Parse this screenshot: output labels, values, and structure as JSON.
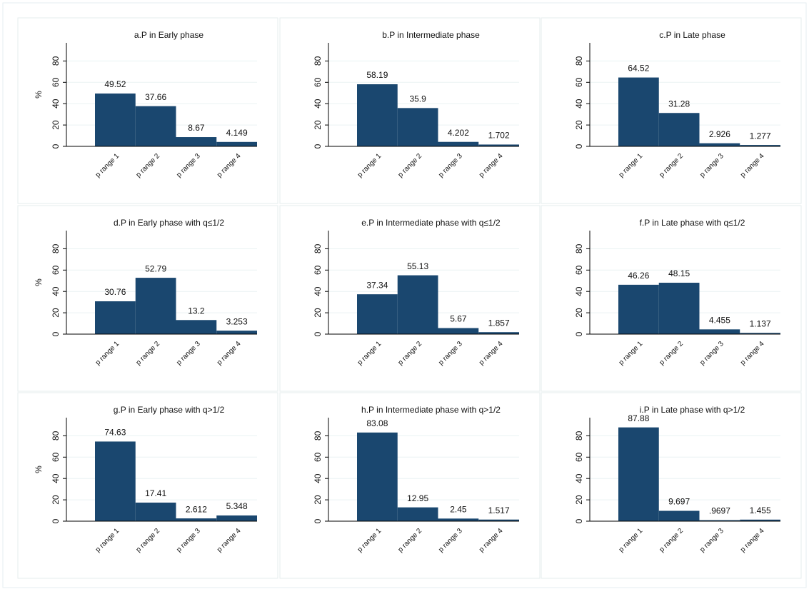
{
  "chart_data": [
    {
      "type": "bar",
      "title": "a.P in Early phase",
      "ylabel": "%",
      "categories": [
        "p range 1",
        "p range 2",
        "p range 3",
        "p range 4"
      ],
      "values": [
        49.52,
        37.66,
        8.67,
        4.149
      ],
      "color": "#1a476f",
      "ylim": [
        0,
        97
      ],
      "yticks": [
        0,
        20,
        40,
        60,
        80
      ],
      "grid": true
    },
    {
      "type": "bar",
      "title": "b.P in Intermediate phase",
      "categories": [
        "p range 1",
        "p range 2",
        "p range 3",
        "p range 4"
      ],
      "values": [
        58.19,
        35.9,
        4.202,
        1.702
      ],
      "color": "#1a476f",
      "ylim": [
        0,
        97
      ],
      "yticks": [
        0,
        20,
        40,
        60,
        80
      ],
      "grid": true
    },
    {
      "type": "bar",
      "title": "c.P in Late phase",
      "categories": [
        "p range 1",
        "p range 2",
        "p range 3",
        "p range 4"
      ],
      "values": [
        64.52,
        31.28,
        2.926,
        1.277
      ],
      "color": "#1a476f",
      "ylim": [
        0,
        97
      ],
      "yticks": [
        0,
        20,
        40,
        60,
        80
      ],
      "grid": true
    },
    {
      "type": "bar",
      "title": "d.P in Early phase with q≤1/2",
      "ylabel": "%",
      "categories": [
        "p range 1",
        "p range 2",
        "p range 3",
        "p range 4"
      ],
      "values": [
        30.76,
        52.79,
        13.2,
        3.253
      ],
      "color": "#1a476f",
      "ylim": [
        0,
        97
      ],
      "yticks": [
        0,
        20,
        40,
        60,
        80
      ],
      "grid": true
    },
    {
      "type": "bar",
      "title": "e.P in Intermediate phase with q≤1/2",
      "categories": [
        "p range 1",
        "p range 2",
        "p range 3",
        "p range 4"
      ],
      "values": [
        37.34,
        55.13,
        5.67,
        1.857
      ],
      "color": "#1a476f",
      "ylim": [
        0,
        97
      ],
      "yticks": [
        0,
        20,
        40,
        60,
        80
      ],
      "grid": true
    },
    {
      "type": "bar",
      "title": "f.P in Late phase with q≤1/2",
      "categories": [
        "p range 1",
        "p range 2",
        "p range 3",
        "p range 4"
      ],
      "values": [
        46.26,
        48.15,
        4.455,
        1.137
      ],
      "color": "#1a476f",
      "ylim": [
        0,
        97
      ],
      "yticks": [
        0,
        20,
        40,
        60,
        80
      ],
      "grid": true
    },
    {
      "type": "bar",
      "title": "g.P in Early phase with q>1/2",
      "ylabel": "%",
      "categories": [
        "p range 1",
        "p range 2",
        "p range 3",
        "p range 4"
      ],
      "values": [
        74.63,
        17.41,
        2.612,
        5.348
      ],
      "color": "#1a476f",
      "ylim": [
        0,
        97
      ],
      "yticks": [
        0,
        20,
        40,
        60,
        80
      ],
      "grid": true
    },
    {
      "type": "bar",
      "title": "h.P in Intermediate phase with q>1/2",
      "categories": [
        "p range 1",
        "p range 2",
        "p range 3",
        "p range 4"
      ],
      "values": [
        83.08,
        12.95,
        2.45,
        1.517
      ],
      "color": "#1a476f",
      "ylim": [
        0,
        97
      ],
      "yticks": [
        0,
        20,
        40,
        60,
        80
      ],
      "grid": true
    },
    {
      "type": "bar",
      "title": "i.P in Late phase with q>1/2",
      "categories": [
        "p range 1",
        "p range 2",
        "p range 3",
        "p range 4"
      ],
      "values": [
        87.88,
        9.697,
        0.9697,
        1.455
      ],
      "value_labels": [
        "87.88",
        "9.697",
        ".9697",
        "1.455"
      ],
      "color": "#1a476f",
      "ylim": [
        0,
        97
      ],
      "yticks": [
        0,
        20,
        40,
        60,
        80
      ],
      "grid": true
    }
  ]
}
